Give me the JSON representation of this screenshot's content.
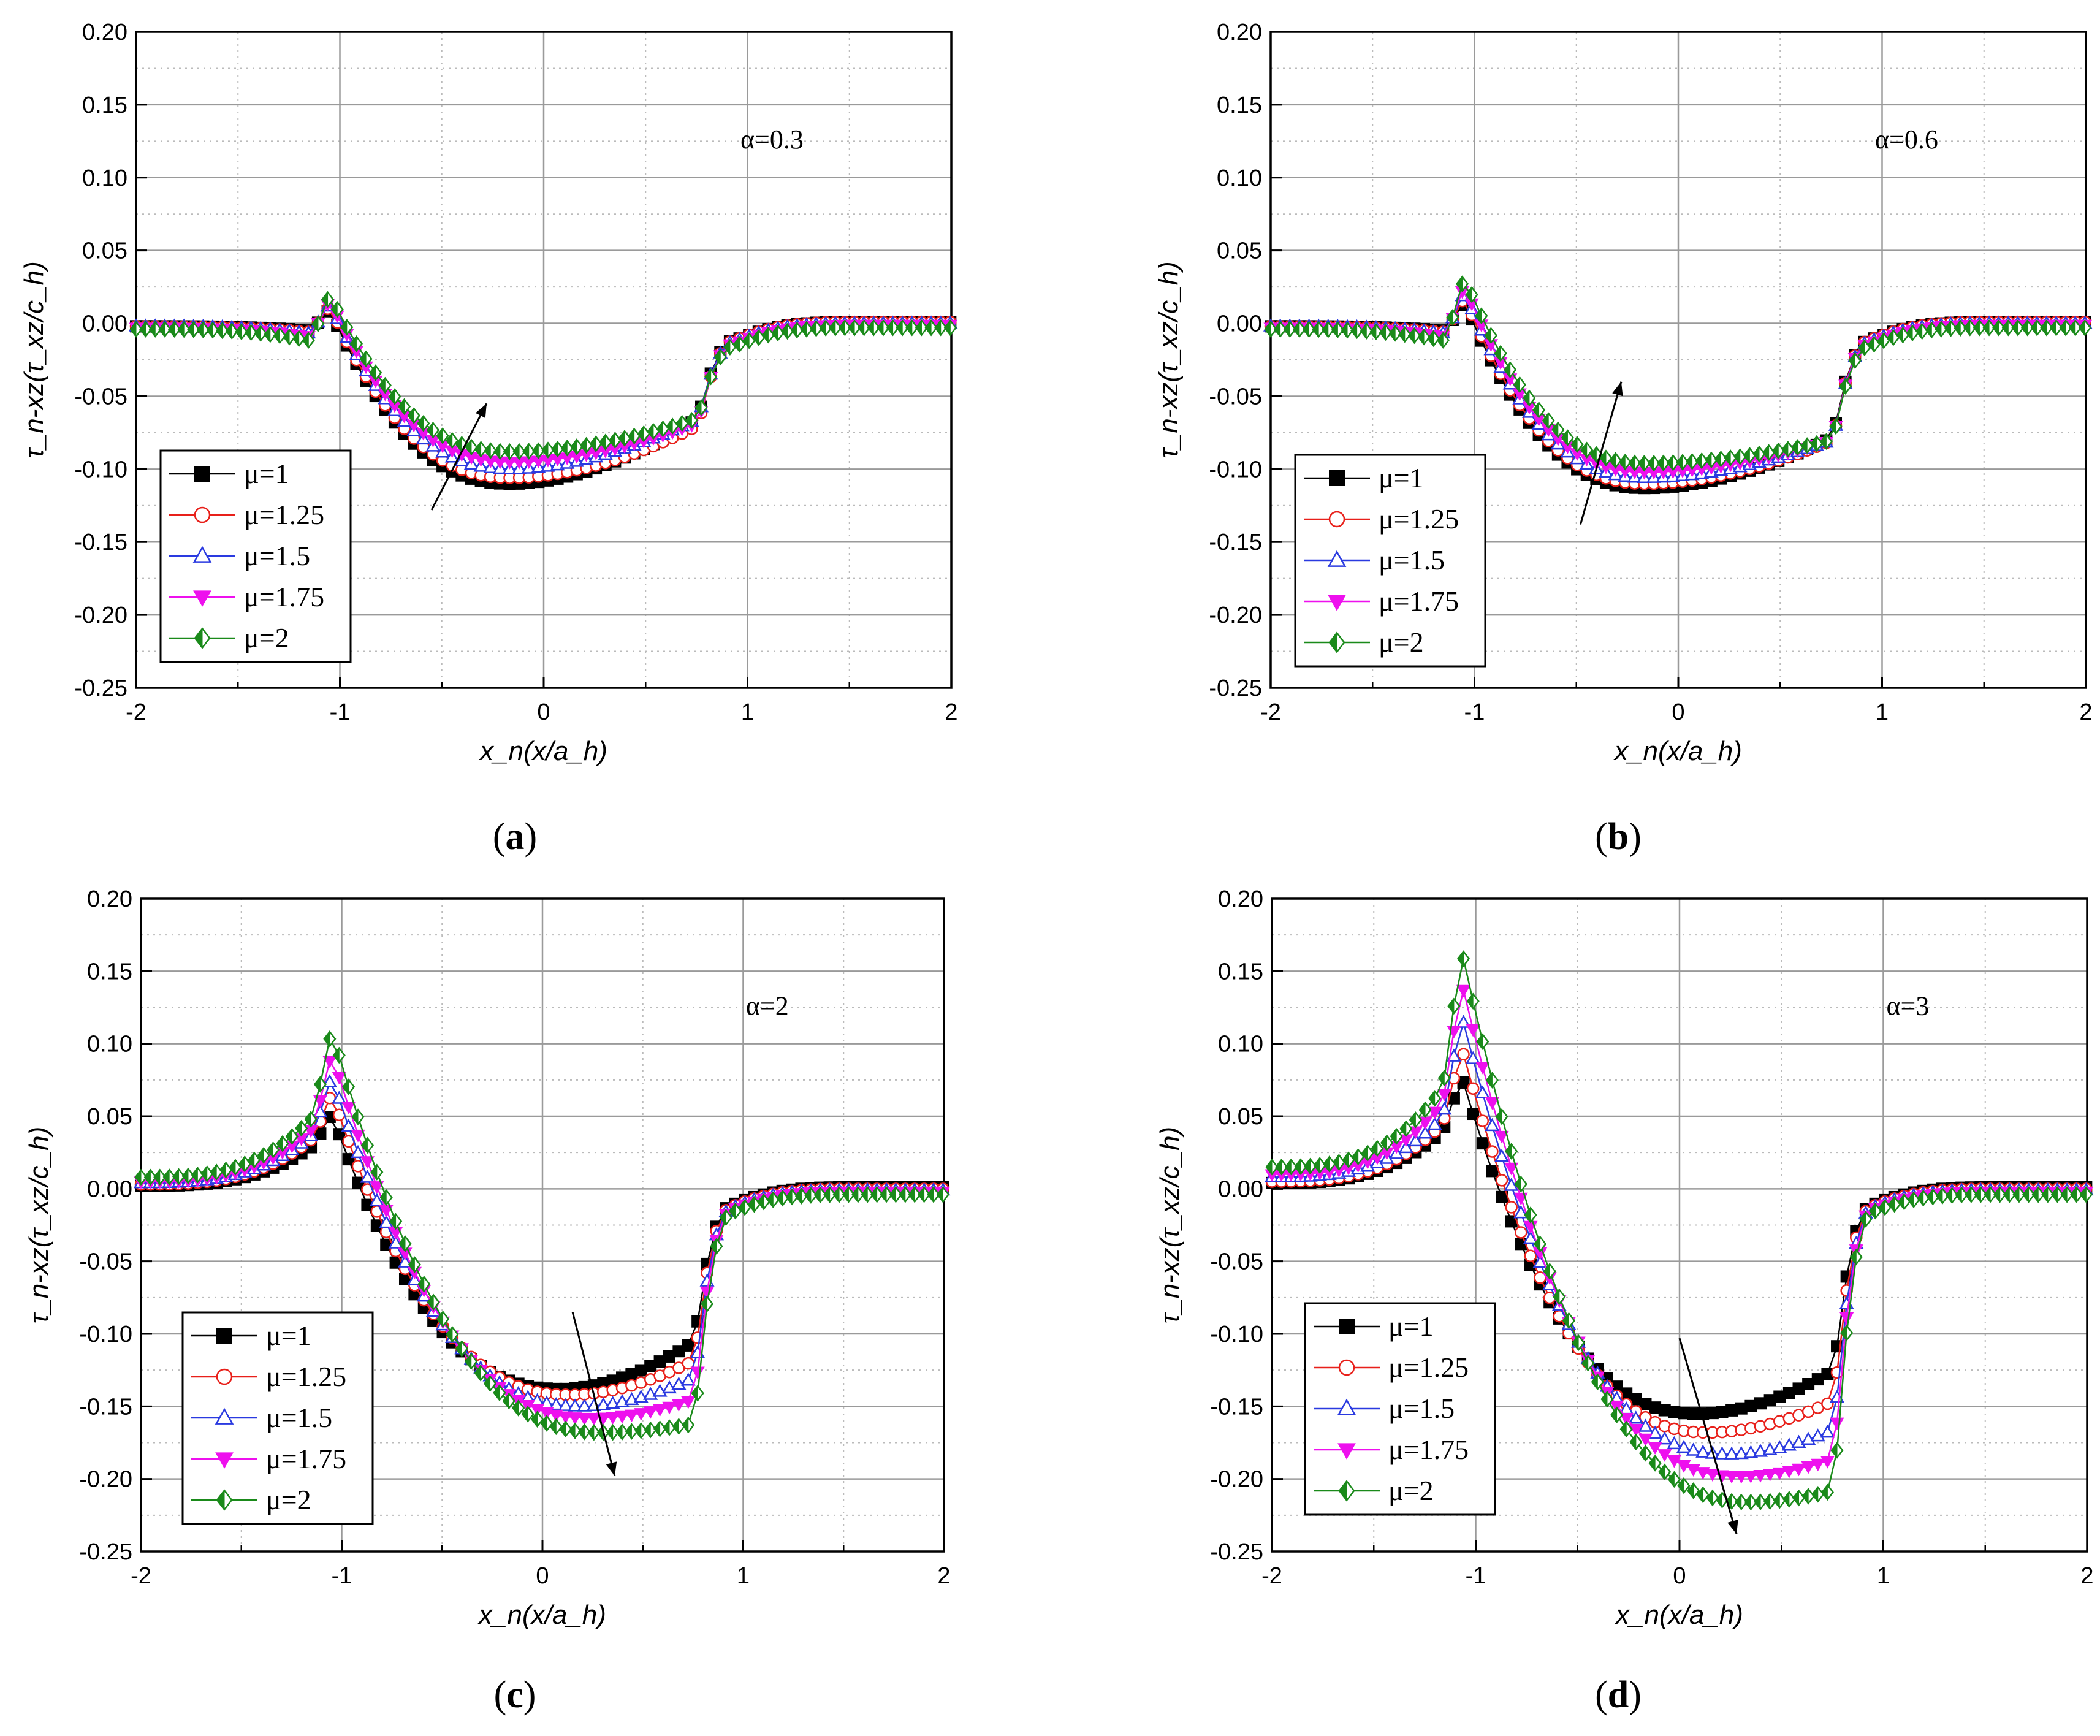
{
  "figure": {
    "x_axis_label": "x_n(x/a_h)",
    "y_axis_label": "τ_n-xz(τ_xz/c_h)",
    "colors": {
      "mu1": "#000000",
      "mu125": "#e8201a",
      "mu15": "#2a3ae0",
      "mu175": "#ee10ee",
      "mu2": "#1a8a1a"
    }
  },
  "chart_data": [
    {
      "type": "line",
      "panel": "a",
      "caption": "a",
      "annotation": "α=0.3",
      "xlim": [
        -2,
        2
      ],
      "ylim": [
        -0.25,
        0.2
      ],
      "xticks": [
        "-2",
        "-1",
        "0",
        "1",
        "2"
      ],
      "yticks": [
        "0.20",
        "0.15",
        "0.10",
        "0.05",
        "0.00",
        "-0.05",
        "-0.10",
        "-0.15",
        "-0.20",
        "-0.25"
      ],
      "xlabel": "x_n(x/a_h)",
      "ylabel": "τ_n-xz(τ_xz/c_h)",
      "arrow": {
        "from": [
          -0.55,
          -0.128
        ],
        "to": [
          -0.28,
          -0.055
        ]
      },
      "legend": [
        "μ=1",
        "μ=1.25",
        "μ=1.5",
        "μ=1.75",
        "μ=2"
      ],
      "series": [
        {
          "name": "μ=1",
          "key": "mu1",
          "marker": "square",
          "outside_left": -0.002,
          "left_slope_end": -0.005,
          "peak": 0.01,
          "peak_x": -1.05,
          "trough": -0.11,
          "trough_x": -0.15,
          "right_end": -0.065,
          "outside_right": 0.001
        },
        {
          "name": "μ=1.25",
          "key": "mu125",
          "marker": "circle",
          "outside_left": -0.002,
          "left_slope_end": -0.006,
          "peak": 0.012,
          "peak_x": -1.05,
          "trough": -0.106,
          "trough_x": -0.15,
          "right_end": -0.07,
          "outside_right": 0.001
        },
        {
          "name": "μ=1.5",
          "key": "mu15",
          "marker": "triangle",
          "outside_left": -0.002,
          "left_slope_end": -0.007,
          "peak": 0.014,
          "peak_x": -1.05,
          "trough": -0.1,
          "trough_x": -0.15,
          "right_end": -0.065,
          "outside_right": 0.0
        },
        {
          "name": "μ=1.75",
          "key": "mu175",
          "marker": "triangle-down",
          "outside_left": -0.003,
          "left_slope_end": -0.009,
          "peak": 0.016,
          "peak_x": -1.05,
          "trough": -0.095,
          "trough_x": -0.15,
          "right_end": -0.068,
          "outside_right": -0.001
        },
        {
          "name": "μ=2",
          "key": "mu2",
          "marker": "diamond",
          "outside_left": -0.004,
          "left_slope_end": -0.012,
          "peak": 0.02,
          "peak_x": -1.05,
          "trough": -0.088,
          "trough_x": -0.15,
          "right_end": -0.065,
          "outside_right": -0.003
        }
      ]
    },
    {
      "type": "line",
      "panel": "b",
      "caption": "b",
      "annotation": "α=0.6",
      "xlim": [
        -2,
        2
      ],
      "ylim": [
        -0.25,
        0.2
      ],
      "xticks": [
        "-2",
        "-1",
        "0",
        "1",
        "2"
      ],
      "yticks": [
        "0.20",
        "0.15",
        "0.10",
        "0.05",
        "0.00",
        "-0.05",
        "-0.10",
        "-0.15",
        "-0.20",
        "-0.25"
      ],
      "xlabel": "x_n(x/a_h)",
      "ylabel": "τ_n-xz(τ_xz/c_h)",
      "arrow": {
        "from": [
          -0.48,
          -0.138
        ],
        "to": [
          -0.28,
          -0.04
        ]
      },
      "legend": [
        "μ=1",
        "μ=1.25",
        "μ=1.5",
        "μ=1.75",
        "μ=2"
      ],
      "series": [
        {
          "name": "μ=1",
          "key": "mu1",
          "marker": "square",
          "outside_left": -0.002,
          "left_slope_end": -0.005,
          "peak": 0.015,
          "peak_x": -1.05,
          "trough": -0.113,
          "trough_x": -0.15,
          "right_end": -0.078,
          "outside_right": 0.001
        },
        {
          "name": "μ=1.25",
          "key": "mu125",
          "marker": "circle",
          "outside_left": -0.002,
          "left_slope_end": -0.006,
          "peak": 0.018,
          "peak_x": -1.05,
          "trough": -0.11,
          "trough_x": -0.15,
          "right_end": -0.08,
          "outside_right": 0.001
        },
        {
          "name": "μ=1.5",
          "key": "mu15",
          "marker": "triangle",
          "outside_left": -0.002,
          "left_slope_end": -0.007,
          "peak": 0.022,
          "peak_x": -1.05,
          "trough": -0.106,
          "trough_x": -0.15,
          "right_end": -0.08,
          "outside_right": 0.0
        },
        {
          "name": "μ=1.75",
          "key": "mu175",
          "marker": "triangle-down",
          "outside_left": -0.003,
          "left_slope_end": -0.009,
          "peak": 0.026,
          "peak_x": -1.05,
          "trough": -0.102,
          "trough_x": -0.15,
          "right_end": -0.08,
          "outside_right": -0.001
        },
        {
          "name": "μ=2",
          "key": "mu2",
          "marker": "diamond",
          "outside_left": -0.004,
          "left_slope_end": -0.012,
          "peak": 0.032,
          "peak_x": -1.05,
          "trough": -0.096,
          "trough_x": -0.15,
          "right_end": -0.08,
          "outside_right": -0.003
        }
      ]
    },
    {
      "type": "line",
      "panel": "c",
      "caption": "c",
      "annotation": "α=2",
      "xlim": [
        -2,
        2
      ],
      "ylim": [
        -0.25,
        0.2
      ],
      "xticks": [
        "-2",
        "-1",
        "0",
        "1",
        "2"
      ],
      "yticks": [
        "0.20",
        "0.15",
        "0.10",
        "0.05",
        "0.00",
        "-0.05",
        "-0.10",
        "-0.15",
        "-0.20",
        "-0.25"
      ],
      "xlabel": "x_n(x/a_h)",
      "ylabel": "τ_n-xz(τ_xz/c_h)",
      "arrow": {
        "from": [
          0.15,
          -0.085
        ],
        "to": [
          0.36,
          -0.198
        ]
      },
      "legend": [
        "μ=1",
        "μ=1.25",
        "μ=1.5",
        "μ=1.75",
        "μ=2"
      ],
      "series": [
        {
          "name": "μ=1",
          "key": "mu1",
          "marker": "square",
          "outside_left": 0.002,
          "left_slope_end": 0.03,
          "peak": 0.052,
          "peak_x": -1.05,
          "trough": -0.138,
          "trough_x": 0.1,
          "right_end": -0.105,
          "outside_right": 0.001
        },
        {
          "name": "μ=1.25",
          "key": "mu125",
          "marker": "circle",
          "outside_left": 0.003,
          "left_slope_end": 0.035,
          "peak": 0.066,
          "peak_x": -1.05,
          "trough": -0.142,
          "trough_x": 0.15,
          "right_end": -0.118,
          "outside_right": 0.0
        },
        {
          "name": "μ=1.5",
          "key": "mu15",
          "marker": "triangle",
          "outside_left": 0.004,
          "left_slope_end": 0.038,
          "peak": 0.078,
          "peak_x": -1.05,
          "trough": -0.15,
          "trough_x": 0.2,
          "right_end": -0.13,
          "outside_right": -0.001
        },
        {
          "name": "μ=1.75",
          "key": "mu175",
          "marker": "triangle-down",
          "outside_left": 0.005,
          "left_slope_end": 0.042,
          "peak": 0.094,
          "peak_x": -1.05,
          "trough": -0.158,
          "trough_x": 0.25,
          "right_end": -0.145,
          "outside_right": -0.002
        },
        {
          "name": "μ=2",
          "key": "mu2",
          "marker": "diamond",
          "outside_left": 0.008,
          "left_slope_end": 0.05,
          "peak": 0.11,
          "peak_x": -1.05,
          "trough": -0.168,
          "trough_x": 0.3,
          "right_end": -0.162,
          "outside_right": -0.004
        }
      ]
    },
    {
      "type": "line",
      "panel": "d",
      "caption": "d",
      "annotation": "α=3",
      "xlim": [
        -2,
        2
      ],
      "ylim": [
        -0.25,
        0.2
      ],
      "xticks": [
        "-2",
        "-1",
        "0",
        "1",
        "2"
      ],
      "yticks": [
        "0.20",
        "0.15",
        "0.10",
        "0.05",
        "0.00",
        "-0.05",
        "-0.10",
        "-0.15",
        "-0.20",
        "-0.25"
      ],
      "xlabel": "x_n(x/a_h)",
      "ylabel": "τ_n-xz(τ_xz/c_h)",
      "arrow": {
        "from": [
          0.0,
          -0.103
        ],
        "to": [
          0.28,
          -0.238
        ]
      },
      "legend": [
        "μ=1",
        "μ=1.25",
        "μ=1.5",
        "μ=1.75",
        "μ=2"
      ],
      "series": [
        {
          "name": "μ=1",
          "key": "mu1",
          "marker": "square",
          "outside_left": 0.004,
          "left_slope_end": 0.04,
          "peak": 0.078,
          "peak_x": -1.07,
          "trough": -0.155,
          "trough_x": 0.1,
          "right_end": -0.125,
          "outside_right": 0.001
        },
        {
          "name": "μ=1.25",
          "key": "mu125",
          "marker": "circle",
          "outside_left": 0.005,
          "left_slope_end": 0.045,
          "peak": 0.098,
          "peak_x": -1.07,
          "trough": -0.168,
          "trough_x": 0.15,
          "right_end": -0.146,
          "outside_right": 0.0
        },
        {
          "name": "μ=1.5",
          "key": "mu15",
          "marker": "triangle",
          "outside_left": 0.008,
          "left_slope_end": 0.05,
          "peak": 0.12,
          "peak_x": -1.07,
          "trough": -0.183,
          "trough_x": 0.25,
          "right_end": -0.166,
          "outside_right": -0.001
        },
        {
          "name": "μ=1.75",
          "key": "mu175",
          "marker": "triangle-down",
          "outside_left": 0.01,
          "left_slope_end": 0.06,
          "peak": 0.143,
          "peak_x": -1.07,
          "trough": -0.198,
          "trough_x": 0.3,
          "right_end": -0.186,
          "outside_right": -0.002
        },
        {
          "name": "μ=2",
          "key": "mu2",
          "marker": "diamond",
          "outside_left": 0.015,
          "left_slope_end": 0.07,
          "peak": 0.165,
          "peak_x": -1.07,
          "trough": -0.216,
          "trough_x": 0.35,
          "right_end": -0.208,
          "outside_right": -0.004
        }
      ]
    }
  ]
}
